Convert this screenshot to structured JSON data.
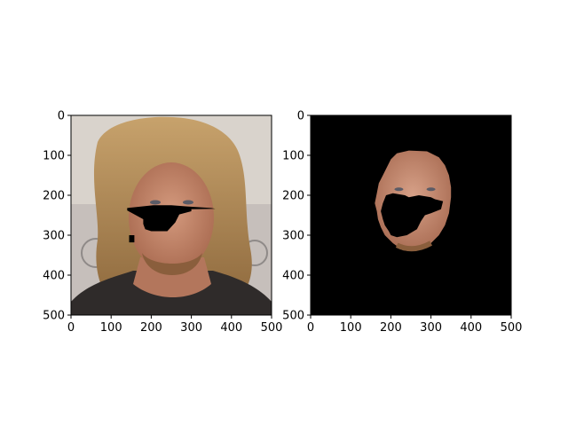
{
  "chart_data": [
    {
      "type": "image",
      "title": "",
      "xlabel": "",
      "ylabel": "",
      "xlim": [
        0,
        500
      ],
      "ylim": [
        500,
        0
      ],
      "x_ticks": [
        0,
        100,
        200,
        300,
        400,
        500
      ],
      "y_ticks": [
        0,
        100,
        200,
        300,
        400,
        500
      ],
      "x_tick_labels": [
        "0",
        "100",
        "200",
        "300",
        "400",
        "500"
      ],
      "y_tick_labels": [
        "0",
        "100",
        "200",
        "300",
        "400",
        "500"
      ],
      "content": "photo-portrait-with-masked-region",
      "background_color": "#d9d3cc",
      "mask_polygons": [
        [
          [
            140,
            232
          ],
          [
            205,
            225
          ],
          [
            250,
            225
          ],
          [
            290,
            228
          ],
          [
            350,
            232
          ],
          [
            360,
            234
          ],
          [
            300,
            235
          ],
          [
            300,
            240
          ],
          [
            270,
            248
          ],
          [
            260,
            268
          ],
          [
            240,
            290
          ],
          [
            200,
            290
          ],
          [
            185,
            285
          ],
          [
            180,
            272
          ],
          [
            180,
            260
          ],
          [
            140,
            238
          ]
        ],
        [
          [
            145,
            300
          ],
          [
            158,
            300
          ],
          [
            158,
            318
          ],
          [
            145,
            318
          ]
        ]
      ],
      "mask_color": "#000000"
    },
    {
      "type": "image",
      "title": "",
      "xlabel": "",
      "ylabel": "",
      "xlim": [
        0,
        500
      ],
      "ylim": [
        500,
        0
      ],
      "x_ticks": [
        0,
        100,
        200,
        300,
        400,
        500
      ],
      "y_ticks": [
        0,
        100,
        200,
        300,
        400,
        500
      ],
      "x_tick_labels": [
        "0",
        "100",
        "200",
        "300",
        "400",
        "500"
      ],
      "y_tick_labels": [
        "0",
        "100",
        "200",
        "300",
        "400",
        "500"
      ],
      "content": "segmented-face-on-black",
      "background_color": "#000000",
      "face_polygon": [
        [
          215,
          95
        ],
        [
          245,
          88
        ],
        [
          290,
          90
        ],
        [
          320,
          105
        ],
        [
          335,
          125
        ],
        [
          345,
          150
        ],
        [
          350,
          180
        ],
        [
          350,
          205
        ],
        [
          345,
          245
        ],
        [
          335,
          275
        ],
        [
          320,
          300
        ],
        [
          300,
          320
        ],
        [
          280,
          335
        ],
        [
          260,
          340
        ],
        [
          230,
          338
        ],
        [
          205,
          320
        ],
        [
          185,
          300
        ],
        [
          175,
          280
        ],
        [
          168,
          260
        ],
        [
          165,
          240
        ],
        [
          160,
          220
        ],
        [
          165,
          195
        ],
        [
          170,
          170
        ],
        [
          180,
          150
        ],
        [
          190,
          130
        ],
        [
          200,
          110
        ]
      ],
      "hole_polygon": [
        [
          188,
          200
        ],
        [
          205,
          195
        ],
        [
          235,
          200
        ],
        [
          245,
          205
        ],
        [
          270,
          200
        ],
        [
          300,
          205
        ],
        [
          310,
          210
        ],
        [
          330,
          215
        ],
        [
          325,
          235
        ],
        [
          300,
          245
        ],
        [
          285,
          250
        ],
        [
          275,
          265
        ],
        [
          265,
          285
        ],
        [
          240,
          300
        ],
        [
          215,
          305
        ],
        [
          200,
          300
        ],
        [
          195,
          290
        ],
        [
          185,
          275
        ],
        [
          180,
          260
        ],
        [
          175,
          240
        ],
        [
          180,
          220
        ]
      ],
      "face_color": "#c8937d"
    }
  ]
}
